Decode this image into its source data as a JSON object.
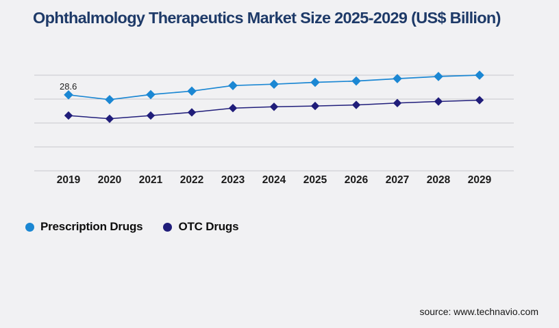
{
  "page": {
    "title": "Ophthalmology Therapeutics Market Size 2025-2029 (US$ Billion)",
    "source": "source: www.technavio.com",
    "background": "#f1f1f3"
  },
  "colors": {
    "title": "#1e3a68",
    "gridline": "#c7c7cc",
    "axis_label": "#1a1a1a",
    "data_label": "#1f1f1f",
    "legend_text": "#0d0d0d",
    "source_text": "#161616"
  },
  "legend": {
    "items": [
      {
        "label": "Prescription Drugs",
        "color": "#1b87d3",
        "marker": "circle"
      },
      {
        "label": "OTC Drugs",
        "color": "#201d7a",
        "marker": "circle"
      }
    ]
  },
  "chart_data": {
    "type": "line",
    "title": "Ophthalmology Therapeutics Market Size 2025-2029 (US$ Billion)",
    "categories": [
      "2019",
      "2020",
      "2021",
      "2022",
      "2023",
      "2024",
      "2025",
      "2026",
      "2027",
      "2028",
      "2029"
    ],
    "series": [
      {
        "name": "Prescription Drugs",
        "color": "#1b87d3",
        "marker": "diamond",
        "values": [
          28.6,
          26.8,
          28.7,
          30.0,
          32.1,
          32.6,
          33.3,
          33.8,
          34.7,
          35.5,
          36.0
        ]
      },
      {
        "name": "OTC Drugs",
        "color": "#201d7a",
        "marker": "diamond",
        "values": [
          20.8,
          19.6,
          20.8,
          22.0,
          23.6,
          24.1,
          24.4,
          24.8,
          25.5,
          26.1,
          26.6
        ]
      }
    ],
    "data_labels": [
      {
        "series": "Prescription Drugs",
        "category": "2019",
        "text": "28.6"
      }
    ],
    "xlabel": "",
    "ylabel": "",
    "ylim": [
      0,
      36
    ],
    "y_axis_labels_visible": false,
    "gridline_count": 5,
    "grid": true,
    "legend_position": "bottom-left"
  }
}
